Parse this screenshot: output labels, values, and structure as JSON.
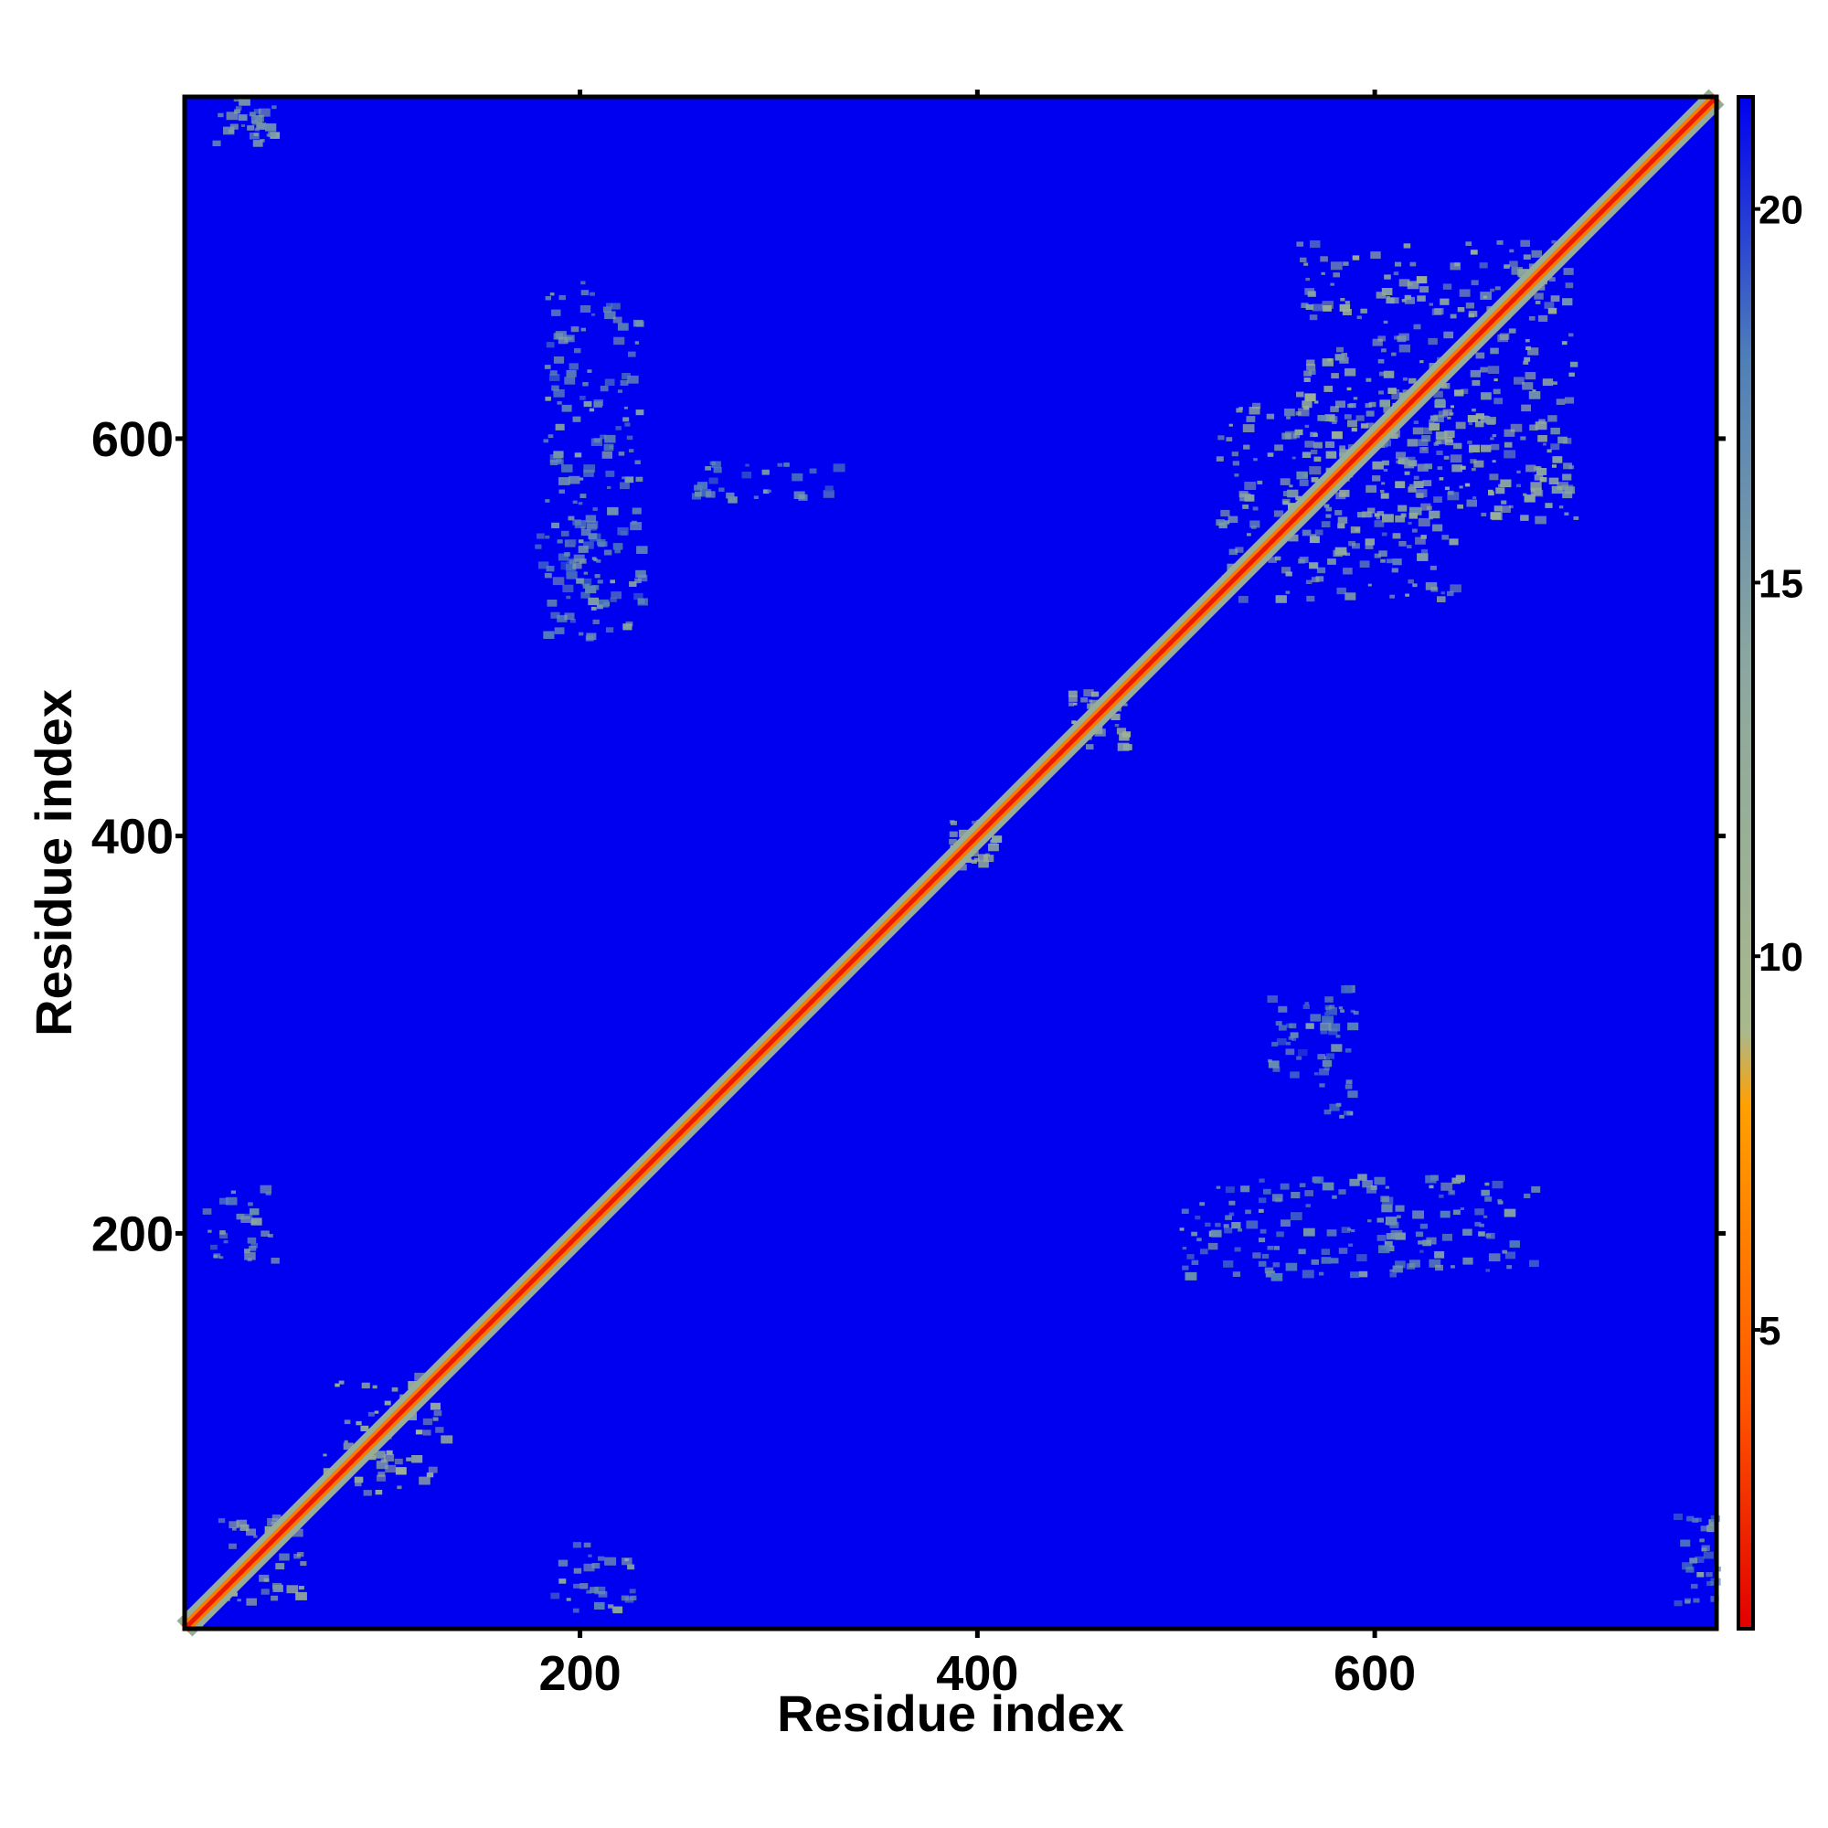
{
  "chart_data": {
    "type": "heatmap",
    "title": "",
    "xlabel": "Residue index",
    "ylabel": "Residue index",
    "xlim": [
      1,
      772
    ],
    "ylim": [
      1,
      772
    ],
    "x_ticks": [
      200,
      400,
      600
    ],
    "y_ticks": [
      200,
      400,
      600
    ],
    "x_tick_labels": [
      "200",
      "400",
      "600"
    ],
    "y_tick_labels": [
      "200",
      "400",
      "600"
    ],
    "colorbar": {
      "range": [
        1,
        21.5
      ],
      "ticks": [
        5,
        10,
        15,
        20
      ],
      "tick_labels": [
        "5",
        "10",
        "15",
        "20"
      ],
      "stops": [
        {
          "value": 1,
          "color": "#e00000"
        },
        {
          "value": 4,
          "color": "#ff5500"
        },
        {
          "value": 8,
          "color": "#ffa000"
        },
        {
          "value": 9,
          "color": "#a9b98c"
        },
        {
          "value": 14,
          "color": "#8aa6a0"
        },
        {
          "value": 18,
          "color": "#4f7fb8"
        },
        {
          "value": 21.5,
          "color": "#0000f0"
        }
      ]
    },
    "background_value": 21.5,
    "background_color": "#0000f0",
    "diagonal": {
      "core_value": 2,
      "band_value": 6,
      "halo_value": 12
    },
    "contact_clusters": [
      {
        "x": [
          560,
          700
        ],
        "y": [
          560,
          700
        ],
        "value": 13
      },
      {
        "x": [
          520,
          640
        ],
        "y": [
          520,
          620
        ],
        "value": 14
      },
      {
        "x": [
          445,
          475
        ],
        "y": [
          445,
          475
        ],
        "value": 12
      },
      {
        "x": [
          385,
          410
        ],
        "y": [
          385,
          410
        ],
        "value": 13
      },
      {
        "x": [
          70,
          130
        ],
        "y": [
          70,
          130
        ],
        "value": 12
      },
      {
        "x": [
          15,
          60
        ],
        "y": [
          15,
          60
        ],
        "value": 13
      },
      {
        "x": [
          10,
          45
        ],
        "y": [
          185,
          225
        ],
        "value": 15
      },
      {
        "x": [
          185,
          225
        ],
        "y": [
          10,
          45
        ],
        "value": 15
      },
      {
        "x": [
          500,
          680
        ],
        "y": [
          180,
          230
        ],
        "value": 16
      },
      {
        "x": [
          180,
          230
        ],
        "y": [
          500,
          680
        ],
        "value": 16
      },
      {
        "x": [
          255,
          330
        ],
        "y": [
          570,
          590
        ],
        "value": 17
      },
      {
        "x": [
          570,
          590
        ],
        "y": [
          255,
          330
        ],
        "value": 17
      },
      {
        "x": [
          15,
          45
        ],
        "y": [
          750,
          772
        ],
        "value": 16
      },
      {
        "x": [
          750,
          772
        ],
        "y": [
          15,
          60
        ],
        "value": 16
      },
      {
        "x": [
          545,
          580
        ],
        "y": [
          270,
          320
        ],
        "value": 17
      },
      {
        "x": [
          175,
          210
        ],
        "y": [
          520,
          560
        ],
        "value": 17
      }
    ]
  }
}
